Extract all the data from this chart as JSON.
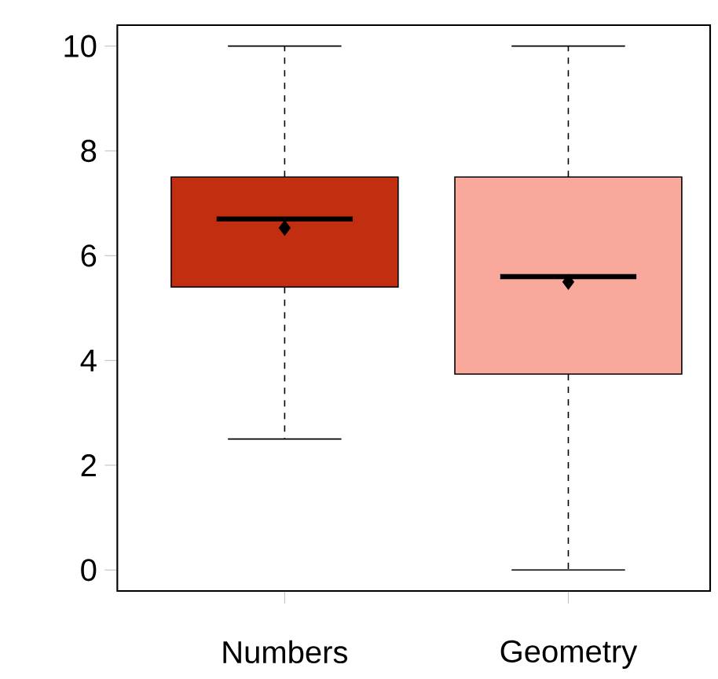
{
  "chart_data": {
    "type": "box",
    "categories": [
      "Numbers",
      "Geometry"
    ],
    "colors": [
      "#c22e10",
      "#f9a99b"
    ],
    "boxes": [
      {
        "low": 2.5,
        "q1": 5.4,
        "median": 6.7,
        "q3": 7.5,
        "high": 10,
        "mean": 6.53
      },
      {
        "low": 0,
        "q1": 3.74,
        "median": 5.6,
        "q3": 7.5,
        "high": 10,
        "mean": 5.5
      }
    ],
    "ylim": [
      -0.4,
      10.4
    ],
    "yticks": [
      0,
      2,
      4,
      6,
      8,
      10
    ]
  }
}
